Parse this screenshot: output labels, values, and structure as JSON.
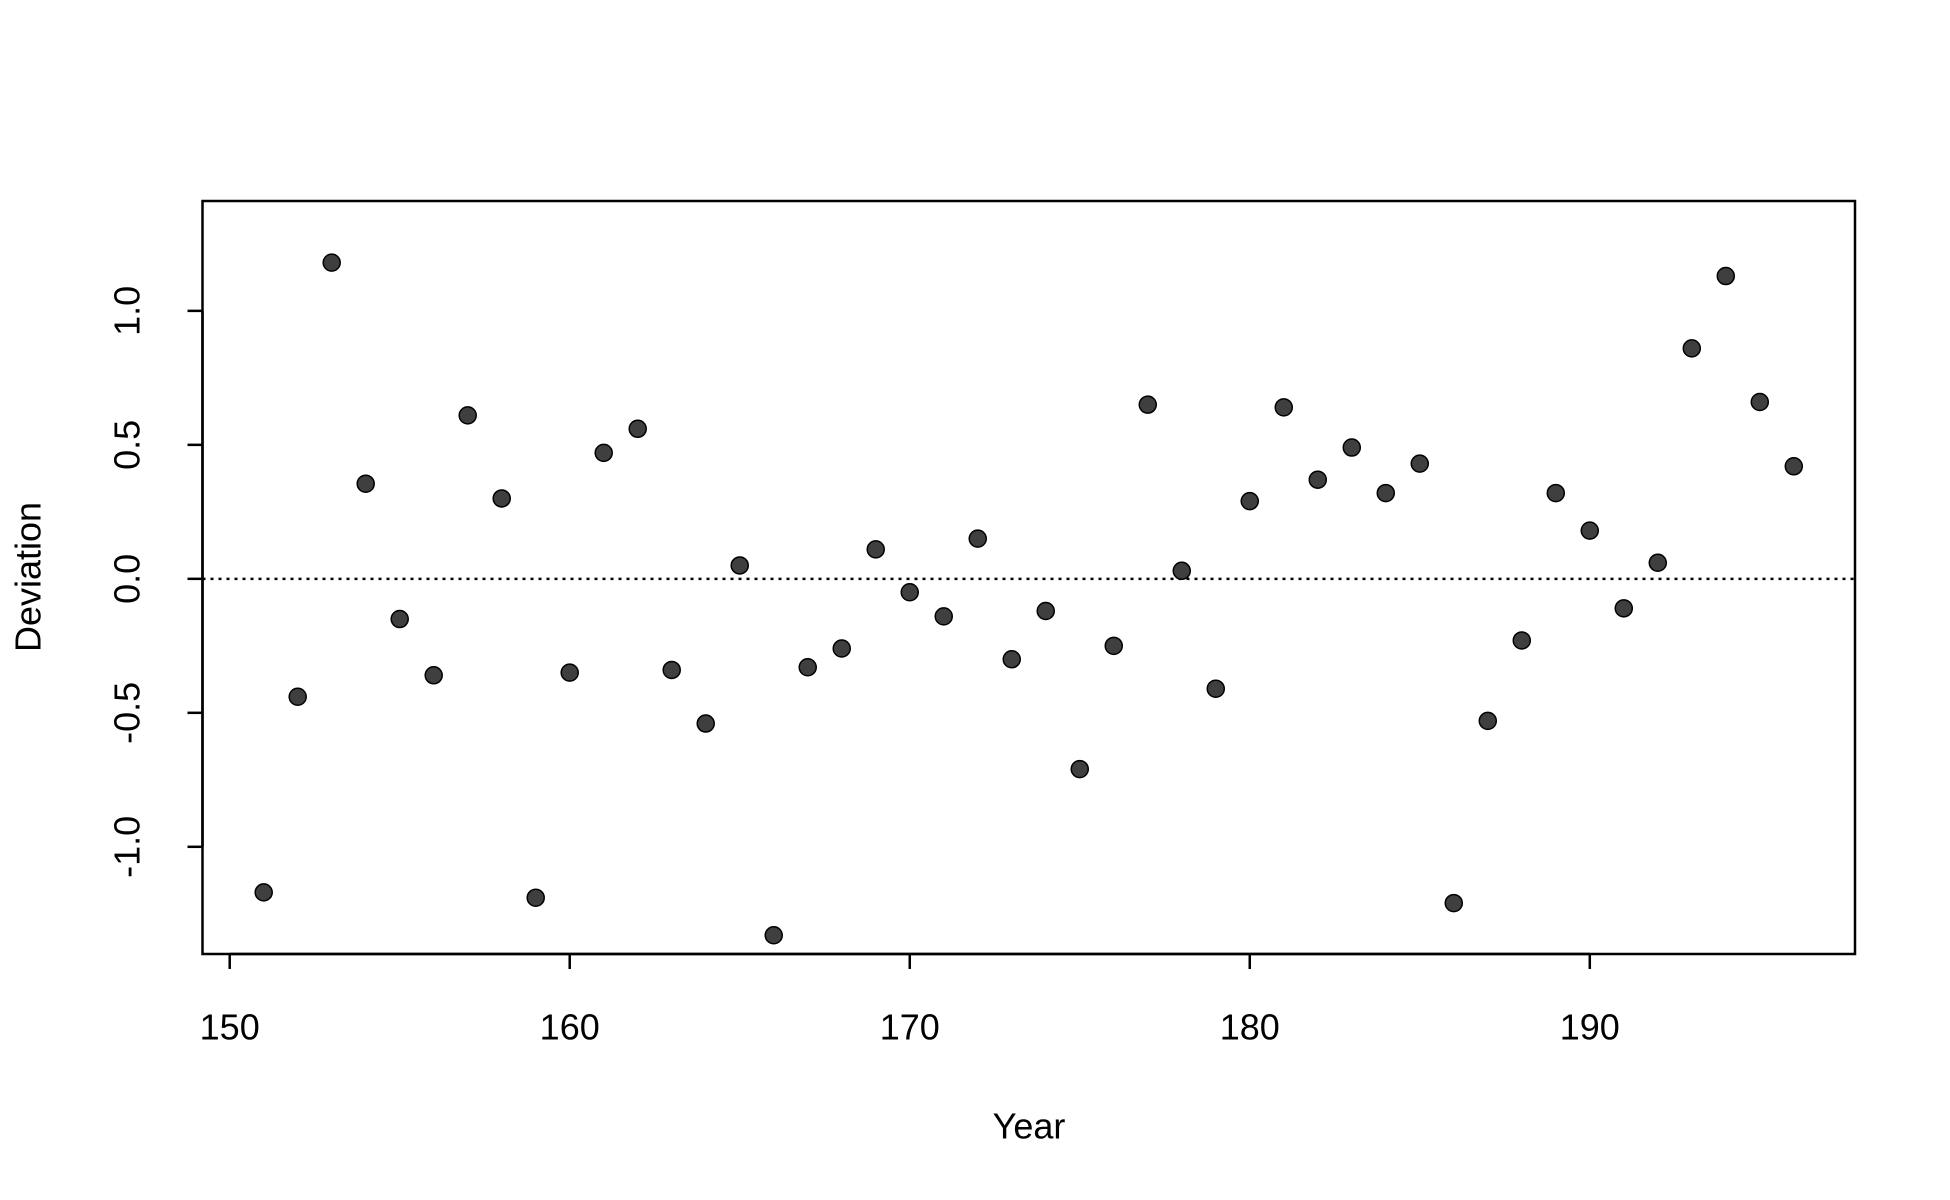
{
  "chart_data": {
    "type": "scatter",
    "x_label": "Year",
    "y_label": "Deviation",
    "x": [
      151,
      152,
      153,
      154,
      155,
      156,
      157,
      158,
      159,
      160,
      161,
      162,
      163,
      164,
      165,
      166,
      167,
      168,
      169,
      170,
      171,
      172,
      173,
      174,
      175,
      176,
      177,
      178,
      179,
      180,
      181,
      182,
      183,
      184,
      185,
      186,
      187,
      188,
      189,
      190,
      191,
      192,
      193,
      194,
      195,
      196
    ],
    "values": [
      -1.17,
      -0.44,
      1.18,
      0.355,
      -0.15,
      -0.36,
      0.61,
      0.3,
      -1.19,
      -0.35,
      0.47,
      0.56,
      -0.34,
      -0.54,
      0.05,
      -1.33,
      -0.33,
      -0.26,
      0.11,
      -0.05,
      -0.14,
      0.15,
      -0.3,
      -0.12,
      -0.71,
      -0.25,
      0.65,
      0.03,
      -0.41,
      0.29,
      0.64,
      0.37,
      0.49,
      0.32,
      0.43,
      -1.21,
      -0.53,
      -0.23,
      0.32,
      0.18,
      -0.11,
      0.06,
      0.86,
      1.13,
      0.66,
      0.42
    ],
    "color": "#3f3f3f",
    "xlim": [
      149.2,
      197.8
    ],
    "ylim": [
      -1.4,
      1.41
    ],
    "xticks": [
      150,
      160,
      170,
      180,
      190
    ],
    "yticks": [
      {
        "value": -1,
        "label": "-1.0"
      },
      {
        "value": -0.5,
        "label": "-0.5"
      },
      {
        "value": 0,
        "label": "0.0"
      },
      {
        "value": 0.5,
        "label": "0.5"
      },
      {
        "value": 1,
        "label": "1.0"
      }
    ],
    "reference_line": 0
  }
}
